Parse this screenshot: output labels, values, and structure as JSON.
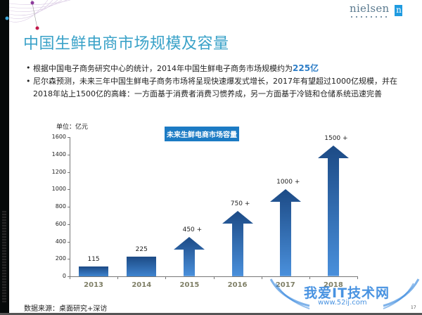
{
  "header": {
    "title": "中国生鲜电商市场规模及容量",
    "logo_text": "nielsen",
    "logo_box": "n"
  },
  "bullets": [
    {
      "text": "根据中国电子商务研究中心的统计，2014年中国生鲜电子商务市场规模约为",
      "highlight": "225亿"
    },
    {
      "text": "尼尔森预测，未来三年中国生鲜电子商务市场将呈现快速爆发式增长，2017年有望超过1000亿规模，并在2018年站上1500亿的高峰：一方面基于消费者消费习惯养成，另一方面基于冷链和仓储系统迅速完善"
    }
  ],
  "chart_data": {
    "type": "bar",
    "title": "未来生鲜电商市场容量",
    "unit_label": "单位：亿元",
    "xlabel": "",
    "ylabel": "亿元",
    "categories": [
      "2013",
      "2014",
      "2015",
      "2016",
      "2017",
      "2018"
    ],
    "values": [
      115,
      225,
      450,
      750,
      1000,
      1500
    ],
    "value_labels": [
      "115",
      "225",
      "450 +",
      "750 +",
      "1000 +",
      "1500 +"
    ],
    "styles": [
      "bar",
      "bar",
      "arrow",
      "arrow",
      "arrow",
      "arrow"
    ],
    "yticks": [
      0,
      200,
      400,
      600,
      800,
      1000,
      1200,
      1400,
      1600
    ],
    "ylim": [
      0,
      1600
    ],
    "grid": false,
    "legend": "none",
    "bar_color": "#2b64a8"
  },
  "footer": {
    "source": "数据来源：桌面研究+深访",
    "page_number": "17"
  },
  "watermark": {
    "text": "我爱IT技术网",
    "url": "www.52ij.com"
  }
}
